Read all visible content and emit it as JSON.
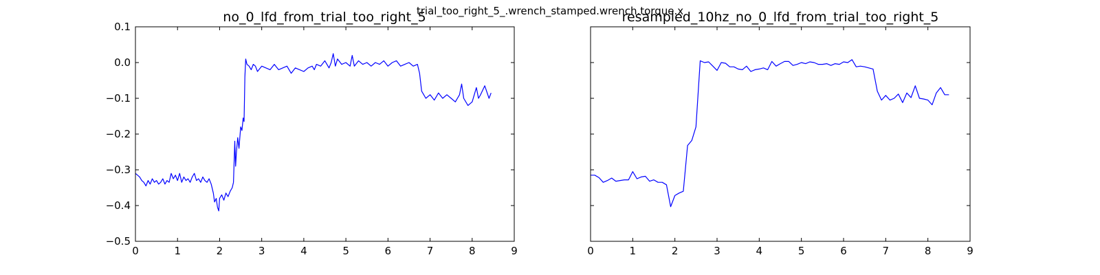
{
  "figure_title": "trial_too_right_5_.wrench_stamped.wrench.torque.x",
  "chart_data": [
    {
      "type": "line",
      "title": "no_0_lfd_from_trial_too_right_5",
      "xlabel": "",
      "ylabel": "",
      "xlim": [
        0,
        9
      ],
      "ylim": [
        -0.5,
        0.1
      ],
      "xticks": [
        0,
        1,
        2,
        3,
        4,
        5,
        6,
        7,
        8,
        9
      ],
      "yticks": [
        0.1,
        0.0,
        -0.1,
        -0.2,
        -0.3,
        -0.4,
        -0.5
      ],
      "xtick_labels": [
        "0",
        "1",
        "2",
        "3",
        "4",
        "5",
        "6",
        "7",
        "8",
        "9"
      ],
      "ytick_labels": [
        "0.1",
        "0.0",
        "−0.1",
        "−0.2",
        "−0.3",
        "−0.4",
        "−0.5"
      ],
      "grid": false,
      "series": [
        {
          "color": "#0000ff",
          "x": [
            0.0,
            0.05,
            0.1,
            0.15,
            0.2,
            0.25,
            0.3,
            0.35,
            0.4,
            0.45,
            0.5,
            0.55,
            0.6,
            0.65,
            0.7,
            0.75,
            0.8,
            0.85,
            0.9,
            0.95,
            1.0,
            1.05,
            1.1,
            1.15,
            1.2,
            1.25,
            1.3,
            1.35,
            1.4,
            1.45,
            1.5,
            1.55,
            1.6,
            1.65,
            1.7,
            1.75,
            1.8,
            1.85,
            1.88,
            1.92,
            1.95,
            1.98,
            2.0,
            2.05,
            2.1,
            2.15,
            2.2,
            2.25,
            2.3,
            2.33,
            2.36,
            2.38,
            2.4,
            2.43,
            2.46,
            2.5,
            2.53,
            2.56,
            2.58,
            2.6,
            2.62,
            2.65,
            2.7,
            2.75,
            2.8,
            2.85,
            2.9,
            3.0,
            3.1,
            3.2,
            3.3,
            3.4,
            3.5,
            3.6,
            3.7,
            3.8,
            3.9,
            4.0,
            4.1,
            4.2,
            4.25,
            4.3,
            4.4,
            4.5,
            4.6,
            4.65,
            4.7,
            4.75,
            4.8,
            4.9,
            5.0,
            5.1,
            5.15,
            5.2,
            5.3,
            5.4,
            5.5,
            5.6,
            5.7,
            5.8,
            5.9,
            6.0,
            6.1,
            6.2,
            6.3,
            6.4,
            6.5,
            6.6,
            6.7,
            6.75,
            6.8,
            6.85,
            6.9,
            7.0,
            7.1,
            7.2,
            7.3,
            7.4,
            7.5,
            7.6,
            7.7,
            7.75,
            7.8,
            7.9,
            8.0,
            8.1,
            8.15,
            8.2,
            8.3,
            8.4,
            8.45
          ],
          "values": [
            -0.31,
            -0.315,
            -0.32,
            -0.33,
            -0.335,
            -0.345,
            -0.33,
            -0.34,
            -0.325,
            -0.335,
            -0.33,
            -0.34,
            -0.335,
            -0.325,
            -0.34,
            -0.33,
            -0.335,
            -0.31,
            -0.325,
            -0.315,
            -0.33,
            -0.31,
            -0.335,
            -0.32,
            -0.33,
            -0.325,
            -0.335,
            -0.32,
            -0.31,
            -0.33,
            -0.325,
            -0.335,
            -0.32,
            -0.33,
            -0.335,
            -0.325,
            -0.34,
            -0.365,
            -0.39,
            -0.38,
            -0.405,
            -0.415,
            -0.38,
            -0.37,
            -0.385,
            -0.365,
            -0.375,
            -0.36,
            -0.35,
            -0.335,
            -0.22,
            -0.29,
            -0.25,
            -0.21,
            -0.24,
            -0.18,
            -0.19,
            -0.155,
            -0.165,
            -0.04,
            0.01,
            -0.005,
            -0.01,
            -0.02,
            -0.005,
            -0.01,
            -0.025,
            -0.01,
            -0.015,
            -0.02,
            -0.005,
            -0.02,
            -0.015,
            -0.01,
            -0.03,
            -0.015,
            -0.02,
            -0.025,
            -0.015,
            -0.01,
            -0.02,
            -0.005,
            -0.01,
            0.005,
            -0.015,
            0.0,
            0.025,
            -0.01,
            0.01,
            -0.005,
            0.0,
            -0.01,
            0.02,
            -0.01,
            0.005,
            -0.005,
            0.0,
            -0.01,
            0.0,
            -0.005,
            0.005,
            -0.01,
            0.0,
            0.005,
            -0.01,
            -0.005,
            0.0,
            -0.01,
            -0.005,
            -0.03,
            -0.08,
            -0.09,
            -0.1,
            -0.09,
            -0.105,
            -0.085,
            -0.1,
            -0.09,
            -0.1,
            -0.11,
            -0.09,
            -0.06,
            -0.1,
            -0.12,
            -0.11,
            -0.07,
            -0.1,
            -0.09,
            -0.065,
            -0.1,
            -0.085
          ]
        }
      ]
    },
    {
      "type": "line",
      "title": "resampled_10hz_no_0_lfd_from_trial_too_right_5",
      "xlabel": "",
      "ylabel": "",
      "xlim": [
        0,
        9
      ],
      "ylim": [
        -0.5,
        0.1
      ],
      "xticks": [
        0,
        1,
        2,
        3,
        4,
        5,
        6,
        7,
        8,
        9
      ],
      "yticks": [
        0.1,
        0.0,
        -0.1,
        -0.2,
        -0.3,
        -0.4,
        -0.5
      ],
      "xtick_labels": [
        "0",
        "1",
        "2",
        "3",
        "4",
        "5",
        "6",
        "7",
        "8",
        "9"
      ],
      "ytick_labels": [],
      "grid": false,
      "series": [
        {
          "color": "#0000ff",
          "x": [
            0.0,
            0.1,
            0.2,
            0.3,
            0.4,
            0.5,
            0.6,
            0.7,
            0.8,
            0.9,
            1.0,
            1.1,
            1.2,
            1.3,
            1.4,
            1.5,
            1.6,
            1.7,
            1.8,
            1.9,
            2.0,
            2.1,
            2.2,
            2.3,
            2.4,
            2.5,
            2.6,
            2.7,
            2.8,
            2.9,
            3.0,
            3.1,
            3.2,
            3.3,
            3.4,
            3.5,
            3.6,
            3.7,
            3.8,
            3.9,
            4.0,
            4.1,
            4.2,
            4.3,
            4.4,
            4.5,
            4.6,
            4.7,
            4.8,
            4.9,
            5.0,
            5.1,
            5.2,
            5.3,
            5.4,
            5.5,
            5.6,
            5.7,
            5.8,
            5.9,
            6.0,
            6.1,
            6.2,
            6.3,
            6.4,
            6.5,
            6.6,
            6.7,
            6.8,
            6.9,
            7.0,
            7.1,
            7.2,
            7.3,
            7.4,
            7.5,
            7.6,
            7.7,
            7.8,
            7.9,
            8.0,
            8.1,
            8.2,
            8.3,
            8.4,
            8.5
          ],
          "values": [
            -0.315,
            -0.315,
            -0.322,
            -0.335,
            -0.33,
            -0.323,
            -0.332,
            -0.33,
            -0.328,
            -0.328,
            -0.305,
            -0.325,
            -0.32,
            -0.318,
            -0.332,
            -0.328,
            -0.335,
            -0.335,
            -0.342,
            -0.403,
            -0.372,
            -0.365,
            -0.36,
            -0.232,
            -0.218,
            -0.18,
            0.005,
            0.0,
            0.002,
            -0.01,
            -0.022,
            0.0,
            -0.002,
            -0.012,
            -0.012,
            -0.018,
            -0.02,
            -0.01,
            -0.025,
            -0.02,
            -0.018,
            -0.015,
            -0.02,
            0.003,
            -0.01,
            -0.003,
            0.003,
            0.003,
            -0.008,
            -0.005,
            0.0,
            -0.003,
            0.002,
            0.0,
            -0.005,
            -0.005,
            -0.003,
            -0.008,
            -0.003,
            -0.005,
            0.002,
            0.0,
            0.008,
            -0.012,
            -0.01,
            -0.012,
            -0.015,
            -0.018,
            -0.08,
            -0.105,
            -0.092,
            -0.105,
            -0.1,
            -0.088,
            -0.112,
            -0.085,
            -0.098,
            -0.065,
            -0.1,
            -0.102,
            -0.105,
            -0.118,
            -0.085,
            -0.07,
            -0.09,
            -0.09
          ]
        }
      ]
    }
  ]
}
